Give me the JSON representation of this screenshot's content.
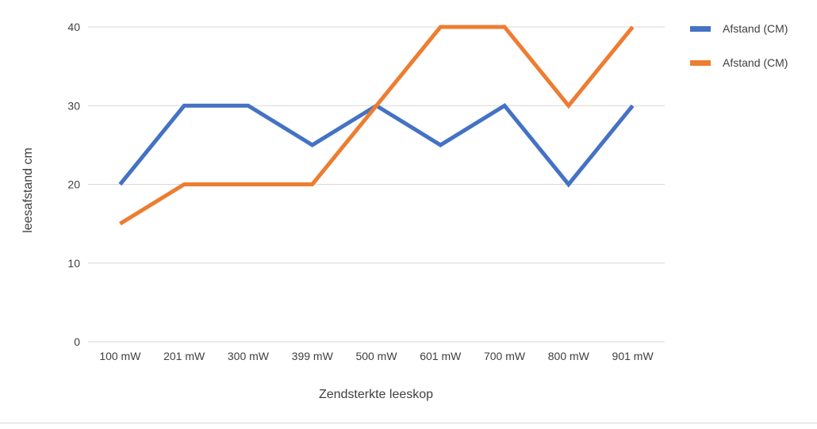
{
  "chart_data": {
    "type": "line",
    "title": "",
    "xlabel": "Zendsterkte leeskop",
    "ylabel": "leesafstand cm",
    "categories": [
      "100 mW",
      "201 mW",
      "300 mW",
      "399 mW",
      "500 mW",
      "601 mW",
      "700 mW",
      "800 mW",
      "901 mW"
    ],
    "ylim": [
      0,
      40
    ],
    "yticks": [
      0,
      10,
      20,
      30,
      40
    ],
    "grid": true,
    "legend_position": "top-right",
    "series": [
      {
        "name": "Afstand (CM)",
        "color": "#4472C4",
        "values": [
          20,
          30,
          30,
          25,
          30,
          25,
          30,
          20,
          30
        ]
      },
      {
        "name": "Afstand (CM)",
        "color": "#ED7D31",
        "values": [
          15,
          20,
          20,
          20,
          30,
          40,
          40,
          30,
          40
        ]
      }
    ]
  }
}
